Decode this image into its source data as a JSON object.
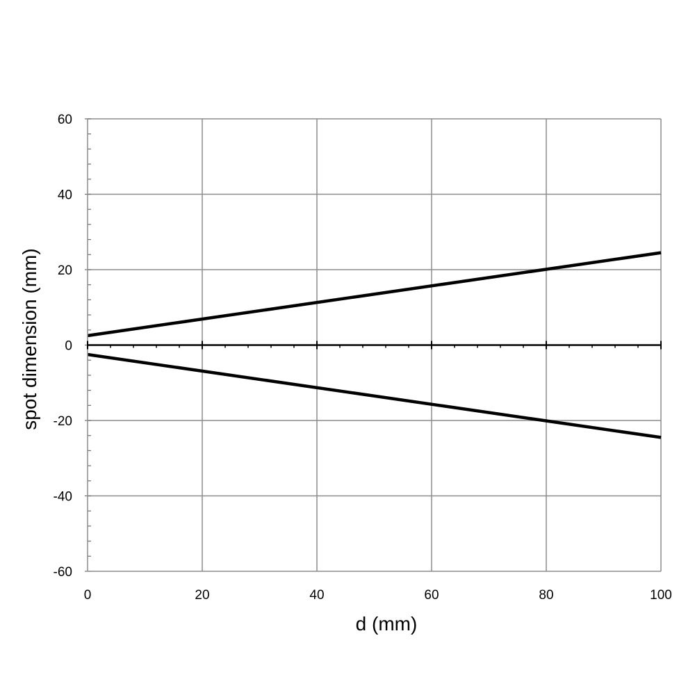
{
  "chart_data": {
    "type": "line",
    "title": "",
    "xlabel": "d (mm)",
    "ylabel": "spot dimension (mm)",
    "xlim": [
      0,
      100
    ],
    "ylim": [
      -60,
      60
    ],
    "x_ticks": [
      0,
      20,
      40,
      60,
      80,
      100
    ],
    "y_ticks": [
      60,
      40,
      20,
      0,
      -20,
      -40,
      -60
    ],
    "x_tick_labels": [
      "0",
      "20",
      "40",
      "60",
      "80",
      "100"
    ],
    "y_tick_labels": [
      "60",
      "40",
      "20",
      "0",
      "-20",
      "-40",
      "-60"
    ],
    "grid": true,
    "legend": "none",
    "series": [
      {
        "x": [
          0,
          100
        ],
        "y": [
          2.5,
          24.5
        ],
        "color": "#000000"
      },
      {
        "x": [
          0,
          100
        ],
        "y": [
          -2.5,
          -24.5
        ],
        "color": "#000000"
      }
    ]
  }
}
